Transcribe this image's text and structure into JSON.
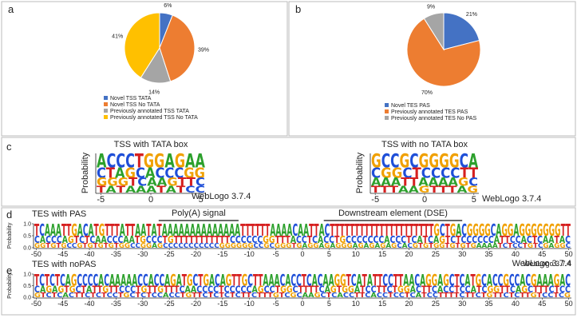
{
  "chart_data": [
    {
      "type": "pie",
      "panel_label": "a",
      "categories": [
        "Novel TSS TATA",
        "Novel TSS No TATA",
        "Previously annotated TSS TATA",
        "Previously annotated TSS No TATA"
      ],
      "values": [
        6,
        39,
        14,
        41
      ],
      "value_labels": [
        "6%",
        "39%",
        "14%",
        "41%"
      ],
      "colors": [
        "#4472c4",
        "#ed7d31",
        "#a5a5a5",
        "#ffc000"
      ]
    },
    {
      "type": "pie",
      "panel_label": "b",
      "categories": [
        "Novel TES PAS",
        "Previously annotated TES PAS",
        "Previously annotated TES No PAS"
      ],
      "values": [
        21,
        70,
        9
      ],
      "value_labels": [
        "21%",
        "70%",
        "9%"
      ],
      "colors": [
        "#4472c4",
        "#ed7d31",
        "#a5a5a5"
      ]
    }
  ],
  "letter_colors": {
    "A": "#2ca02c",
    "C": "#1f4fd8",
    "G": "#f0a000",
    "T": "#d62020"
  },
  "logo_panels": [
    {
      "panel_label": "c",
      "logos": [
        {
          "title": "TSS with TATA box",
          "ylabel": "Probability",
          "footer": "WebLogo 3.7.4",
          "xlim": [
            -5.5,
            5.5
          ],
          "xticks": [
            -5,
            0,
            5
          ],
          "rows": [
            "ACCCTGGAGAA",
            "CTAGCACCCGG",
            "GGGTCAAGTTC",
            "TATAAATATCC"
          ]
        },
        {
          "title": "TSS with no TATA box",
          "ylabel": "Probability",
          "footer": "WebLogo 3.7.4",
          "xlim": [
            -5.5,
            5.5
          ],
          "xticks": [
            -5,
            0,
            5
          ],
          "rows": [
            "GCCGCGGGGCA",
            "CGGCTCCCCTT",
            "AAATTAAAAGC",
            "TTTAAGTTTAG"
          ]
        }
      ]
    },
    {
      "panel_label": "d",
      "logos": [
        {
          "title": "TES with PAS",
          "ylabel": "Probability",
          "footer": "WebLogo 3.7.4",
          "annotations": [
            "Poly(A) signal",
            "Downstream element (DSE)"
          ],
          "xlim": [
            -50.5,
            50.5
          ],
          "xticks": [
            -50,
            -45,
            -40,
            -35,
            -30,
            -25,
            -20,
            -15,
            -10,
            -5,
            0,
            5,
            10,
            15,
            20,
            25,
            30,
            35,
            40,
            45,
            50
          ],
          "ylim": [
            0,
            1
          ],
          "yticks": [
            {
              "value": 0,
              "label": "0.0"
            },
            {
              "value": 0.5,
              "label": "0.5"
            },
            {
              "value": 1,
              "label": "1.0"
            }
          ],
          "rows": [
            "TCAAATTGACATGTTTATTAATATAAAAAAAAAAAAAATTTTTTAAAACAATTACTTTTTTTTTTTTTTTTTTTTTGCTGACGGGGCAGGAGGGGGGGTT",
            "CACCCAGTCTCAACCCAATGCCCTGTTTTTTTTTTTCCCCCCGGTTTACCTCACCTGCCCCCCCACCCTCATCAGTCTCCCCCCATTCCACTCAATAC",
            "GGTGTGCCGTGTGTGTGGCCGGAGCCCCCCCCCCCGGGGGGCCGCGGGTGAGGAGAGGGAGAGAGAGCACGTGTGGTGTGTGAAAATCTCCTGTCGAGGC"
          ]
        }
      ]
    },
    {
      "panel_label": "e",
      "logos": [
        {
          "title": "TES with noPAS",
          "ylabel": "Probability",
          "footer": "WebLogo 3.7.4",
          "xlim": [
            -50.5,
            50.5
          ],
          "xticks": [
            -50,
            -45,
            -40,
            -35,
            -30,
            -25,
            -20,
            -15,
            -10,
            -5,
            0,
            5,
            10,
            15,
            20,
            25,
            30,
            35,
            40,
            45,
            50
          ],
          "ylim": [
            0,
            1
          ],
          "yticks": [
            {
              "value": 0,
              "label": "0.0"
            },
            {
              "value": 0.5,
              "label": "0.5"
            },
            {
              "value": 1,
              "label": "1.0"
            }
          ],
          "rows": [
            "TCTCTCAGCCCCACAAAAACCACCAGATGCTGACAGTTGCTTAAACACCTCACAAGGTCATATTCCTTAACAGGAGCTCATGCACCGCCACGAAAGAC",
            "CAGAGTGCTATTGTTCCCTGTTGTTTCAACCCCTCCCCCAGCCTGGCTTTTCAGTGGATCCTTCTGGACTTCACCTCCATCGGTTCAGCTTTCTCC",
            "GTCTCACTTCTCTCCTGCTCTCCACCTGTTCTCTCTCTTCTTTGTCGCAAGCTCACCTTCACCTCCTCATCCTTTTCTTCTGTTCTCTTGTCCTCG"
          ]
        }
      ]
    }
  ]
}
